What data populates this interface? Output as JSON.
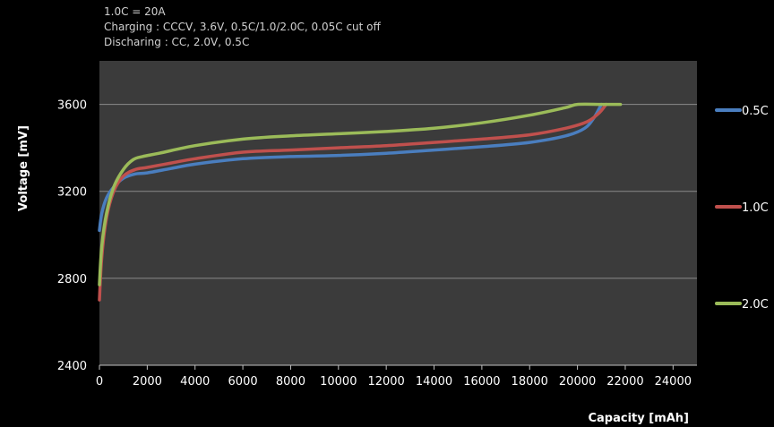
{
  "notes": {
    "line1": "1.0C = 20A",
    "line2": "Charging : CCCV, 3.6V, 0.5C/1.0/2.0C, 0.05C cut off",
    "line3": "Discharing : CC, 2.0V, 0.5C"
  },
  "chart_data": {
    "type": "line",
    "title": "",
    "xlabel": "Capacity [mAh]",
    "ylabel": "Voltage [mV]",
    "xlim": [
      0,
      25000
    ],
    "ylim": [
      2400,
      3800
    ],
    "xticks": [
      0,
      2000,
      4000,
      6000,
      8000,
      10000,
      12000,
      14000,
      16000,
      18000,
      20000,
      22000,
      24000
    ],
    "yticks": [
      2400,
      2800,
      3200,
      3600
    ],
    "grid": true,
    "legend_position": "right",
    "plot_background": "#3b3b3b",
    "series": [
      {
        "name": "0.5C",
        "color": "#4a7ebf",
        "x": [
          0,
          100,
          300,
          600,
          1000,
          1500,
          2000,
          3000,
          4000,
          6000,
          8000,
          10000,
          12000,
          14000,
          16000,
          18000,
          19500,
          20300,
          20700,
          21000
        ],
        "y": [
          3020,
          3100,
          3170,
          3220,
          3260,
          3280,
          3285,
          3305,
          3325,
          3350,
          3360,
          3365,
          3375,
          3390,
          3405,
          3425,
          3455,
          3490,
          3540,
          3600
        ]
      },
      {
        "name": "1.0C",
        "color": "#c0504d",
        "x": [
          0,
          100,
          300,
          600,
          1000,
          1500,
          2000,
          3000,
          4000,
          6000,
          8000,
          10000,
          12000,
          14000,
          16000,
          18000,
          19500,
          20400,
          20900,
          21200
        ],
        "y": [
          2700,
          2900,
          3080,
          3200,
          3270,
          3300,
          3310,
          3330,
          3350,
          3380,
          3390,
          3400,
          3410,
          3425,
          3440,
          3460,
          3490,
          3520,
          3560,
          3600
        ]
      },
      {
        "name": "2.0C",
        "color": "#9bbb59",
        "x": [
          0,
          100,
          300,
          600,
          1000,
          1400,
          1800,
          2500,
          4000,
          6000,
          8000,
          10000,
          12000,
          14000,
          16000,
          18000,
          19500,
          20000,
          21000,
          21800
        ],
        "y": [
          2770,
          2950,
          3100,
          3220,
          3300,
          3345,
          3360,
          3375,
          3410,
          3440,
          3455,
          3465,
          3475,
          3490,
          3515,
          3550,
          3585,
          3600,
          3600,
          3600
        ]
      }
    ]
  }
}
